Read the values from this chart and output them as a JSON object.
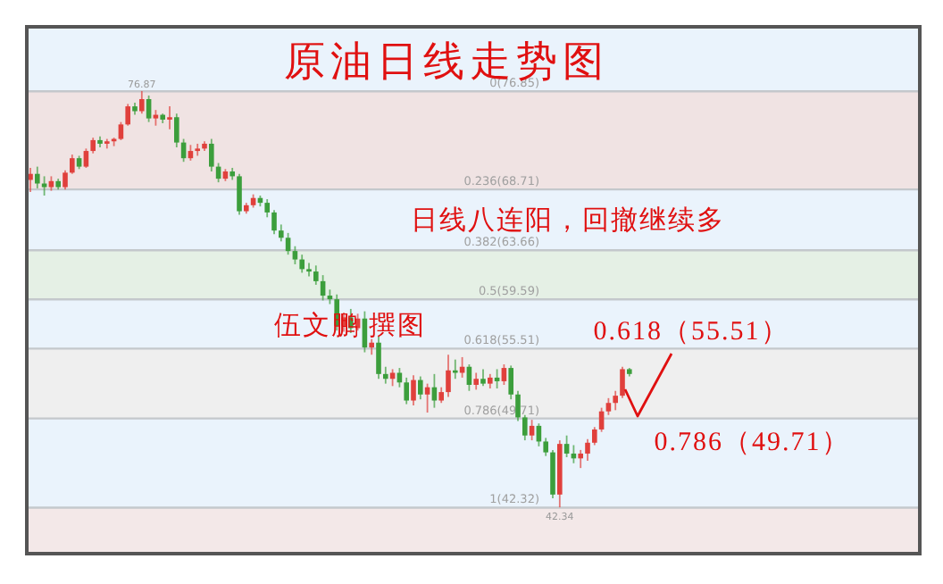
{
  "chart_data": {
    "type": "candlestick",
    "title": "原油日线走势图",
    "ylim": [
      38.5,
      82.2
    ],
    "categories": [
      null,
      null,
      null,
      null,
      null,
      null,
      null,
      null,
      null,
      null,
      null,
      null,
      null,
      null,
      null,
      null,
      null,
      null,
      null,
      null,
      null,
      null,
      null,
      null,
      null,
      null,
      null,
      null,
      null,
      null,
      null,
      null,
      null,
      null,
      null,
      null,
      null,
      null,
      null,
      null,
      null,
      null,
      null,
      null,
      null,
      null,
      null,
      null,
      null,
      null,
      null,
      null,
      null,
      null,
      null,
      null,
      null,
      null,
      null,
      null,
      null,
      null,
      null,
      null,
      null,
      null,
      null,
      null,
      null,
      null,
      null,
      null,
      null,
      null,
      null,
      null,
      null,
      null,
      null,
      null,
      null,
      null,
      null,
      null,
      null,
      null,
      null
    ],
    "ohlc": [
      [
        69.5,
        70.5,
        68.5,
        70.0
      ],
      [
        70.0,
        70.6,
        68.8,
        69.2
      ],
      [
        69.2,
        69.8,
        68.2,
        68.9
      ],
      [
        68.9,
        69.8,
        68.6,
        69.4
      ],
      [
        69.4,
        69.6,
        68.7,
        68.9
      ],
      [
        68.9,
        70.3,
        68.7,
        70.1
      ],
      [
        70.1,
        71.6,
        70.0,
        71.3
      ],
      [
        71.3,
        71.5,
        70.4,
        70.6
      ],
      [
        70.6,
        72.1,
        70.5,
        71.9
      ],
      [
        71.9,
        73.0,
        71.7,
        72.8
      ],
      [
        72.8,
        73.1,
        72.2,
        72.5
      ],
      [
        72.5,
        72.9,
        72.1,
        72.7
      ],
      [
        72.7,
        73.0,
        72.3,
        72.9
      ],
      [
        72.9,
        74.3,
        72.8,
        74.1
      ],
      [
        74.1,
        75.8,
        74.0,
        75.6
      ],
      [
        75.6,
        75.9,
        74.9,
        75.2
      ],
      [
        75.2,
        76.87,
        75.0,
        76.2
      ],
      [
        76.2,
        76.5,
        74.3,
        74.6
      ],
      [
        74.6,
        75.3,
        74.0,
        74.9
      ],
      [
        74.9,
        75.0,
        74.2,
        74.5
      ],
      [
        74.5,
        75.6,
        73.7,
        74.7
      ],
      [
        74.7,
        75.0,
        72.2,
        72.6
      ],
      [
        72.6,
        72.9,
        71.0,
        71.3
      ],
      [
        71.3,
        72.4,
        71.1,
        71.9
      ],
      [
        71.9,
        72.5,
        71.5,
        72.1
      ],
      [
        72.1,
        72.7,
        71.9,
        72.5
      ],
      [
        72.5,
        72.9,
        70.2,
        70.6
      ],
      [
        70.6,
        70.9,
        69.3,
        69.6
      ],
      [
        69.6,
        70.4,
        69.4,
        70.2
      ],
      [
        70.2,
        70.5,
        69.5,
        69.8
      ],
      [
        69.8,
        70.0,
        66.6,
        66.9
      ],
      [
        66.9,
        67.6,
        66.7,
        67.4
      ],
      [
        67.4,
        68.3,
        67.2,
        68.0
      ],
      [
        68.0,
        68.2,
        67.3,
        67.6
      ],
      [
        67.6,
        67.9,
        66.4,
        66.8
      ],
      [
        66.8,
        67.0,
        65.0,
        65.3
      ],
      [
        65.3,
        65.8,
        64.4,
        64.7
      ],
      [
        64.7,
        65.1,
        63.3,
        63.6
      ],
      [
        63.6,
        64.0,
        62.5,
        62.9
      ],
      [
        62.9,
        63.3,
        61.8,
        62.1
      ],
      [
        62.1,
        62.6,
        61.5,
        61.9
      ],
      [
        61.9,
        62.4,
        60.8,
        61.1
      ],
      [
        61.1,
        61.6,
        59.5,
        59.9
      ],
      [
        59.9,
        60.4,
        59.2,
        59.6
      ],
      [
        59.6,
        60.0,
        57.0,
        57.4
      ],
      [
        57.4,
        58.5,
        56.9,
        58.1
      ],
      [
        58.1,
        58.8,
        56.8,
        57.2
      ],
      [
        57.2,
        58.4,
        57.0,
        58.0
      ],
      [
        58.0,
        58.6,
        55.2,
        55.6
      ],
      [
        55.6,
        56.3,
        55.0,
        56.0
      ],
      [
        56.0,
        56.5,
        53.0,
        53.4
      ],
      [
        53.4,
        54.0,
        52.6,
        53.0
      ],
      [
        53.0,
        53.8,
        52.4,
        53.5
      ],
      [
        53.5,
        53.9,
        52.3,
        52.7
      ],
      [
        52.7,
        53.1,
        50.9,
        51.2
      ],
      [
        51.2,
        53.3,
        50.8,
        52.9
      ],
      [
        52.9,
        53.2,
        51.3,
        51.7
      ],
      [
        51.7,
        52.6,
        50.2,
        52.3
      ],
      [
        52.3,
        53.4,
        50.6,
        51.2
      ],
      [
        51.2,
        52.3,
        51.0,
        51.9
      ],
      [
        51.9,
        55.0,
        51.5,
        53.7
      ],
      [
        53.7,
        54.6,
        53.0,
        53.5
      ],
      [
        53.5,
        54.8,
        53.1,
        54.0
      ],
      [
        54.0,
        54.2,
        52.0,
        52.5
      ],
      [
        52.5,
        53.5,
        52.1,
        53.0
      ],
      [
        53.0,
        53.8,
        52.4,
        52.6
      ],
      [
        52.6,
        53.4,
        52.2,
        53.1
      ],
      [
        53.1,
        53.8,
        52.2,
        52.8
      ],
      [
        52.8,
        54.2,
        52.5,
        53.9
      ],
      [
        53.9,
        54.1,
        51.3,
        51.7
      ],
      [
        51.7,
        52.0,
        49.5,
        49.8
      ],
      [
        49.8,
        50.0,
        47.9,
        48.3
      ],
      [
        48.3,
        49.6,
        47.9,
        49.1
      ],
      [
        49.1,
        49.3,
        47.4,
        47.8
      ],
      [
        47.8,
        48.1,
        46.6,
        46.9
      ],
      [
        46.9,
        47.1,
        43.1,
        43.4
      ],
      [
        43.4,
        47.9,
        42.34,
        47.6
      ],
      [
        47.6,
        48.3,
        46.5,
        46.8
      ],
      [
        46.8,
        47.5,
        46.0,
        46.4
      ],
      [
        46.4,
        47.1,
        45.6,
        46.8
      ],
      [
        46.8,
        48.0,
        46.2,
        47.7
      ],
      [
        47.7,
        49.0,
        47.5,
        48.8
      ],
      [
        48.8,
        50.6,
        48.6,
        50.3
      ],
      [
        50.3,
        51.4,
        50.0,
        51.0
      ],
      [
        51.0,
        52.0,
        50.4,
        51.6
      ],
      [
        51.6,
        54.0,
        51.4,
        53.8
      ],
      [
        53.8,
        53.9,
        53.2,
        53.4
      ]
    ],
    "colors": [
      "#e0403c",
      "#3c9e3c",
      "#3c9e3c",
      "#e0403c",
      "#3c9e3c",
      "#e0403c",
      "#e0403c",
      "#3c9e3c",
      "#e0403c",
      "#e0403c",
      "#3c9e3c",
      "#e0403c",
      "#e0403c",
      "#e0403c",
      "#e0403c",
      "#3c9e3c",
      "#e0403c",
      "#3c9e3c",
      "#e0403c",
      "#3c9e3c",
      "#e0403c",
      "#3c9e3c",
      "#3c9e3c",
      "#e0403c",
      "#e0403c",
      "#e0403c",
      "#3c9e3c",
      "#3c9e3c",
      "#e0403c",
      "#3c9e3c",
      "#3c9e3c",
      "#e0403c",
      "#e0403c",
      "#3c9e3c",
      "#3c9e3c",
      "#3c9e3c",
      "#3c9e3c",
      "#3c9e3c",
      "#3c9e3c",
      "#3c9e3c",
      "#3c9e3c",
      "#3c9e3c",
      "#3c9e3c",
      "#3c9e3c",
      "#3c9e3c",
      "#e0403c",
      "#3c9e3c",
      "#e0403c",
      "#3c9e3c",
      "#e0403c",
      "#3c9e3c",
      "#3c9e3c",
      "#e0403c",
      "#3c9e3c",
      "#3c9e3c",
      "#e0403c",
      "#3c9e3c",
      "#e0403c",
      "#3c9e3c",
      "#e0403c",
      "#e0403c",
      "#3c9e3c",
      "#e0403c",
      "#3c9e3c",
      "#e0403c",
      "#3c9e3c",
      "#e0403c",
      "#3c9e3c",
      "#e0403c",
      "#3c9e3c",
      "#3c9e3c",
      "#3c9e3c",
      "#e0403c",
      "#3c9e3c",
      "#3c9e3c",
      "#3c9e3c",
      "#e0403c",
      "#3c9e3c",
      "#3c9e3c",
      "#e0403c",
      "#e0403c",
      "#e0403c",
      "#e0403c",
      "#e0403c",
      "#e0403c",
      "#e0403c",
      "#3c9e3c"
    ],
    "bands": [
      {
        "axis": "y",
        "from": 76.85,
        "to": 82.2,
        "color": "#eaf3fc"
      },
      {
        "axis": "y",
        "from": 68.71,
        "to": 76.85,
        "color": "#f0e3e3"
      },
      {
        "axis": "y",
        "from": 63.66,
        "to": 68.71,
        "color": "#eaf3fc"
      },
      {
        "axis": "y",
        "from": 59.59,
        "to": 63.66,
        "color": "#e5f0e5"
      },
      {
        "axis": "y",
        "from": 55.51,
        "to": 59.59,
        "color": "#eaf3fc"
      },
      {
        "axis": "y",
        "from": 49.71,
        "to": 55.51,
        "color": "#efefef"
      },
      {
        "axis": "y",
        "from": 42.32,
        "to": 49.71,
        "color": "#eaf3fc"
      },
      {
        "axis": "y",
        "from": 38.5,
        "to": 42.32,
        "color": "#f3e8e8"
      }
    ],
    "ref_lines": [
      {
        "axis": "y",
        "value": 76.85,
        "label": "0(76.85)",
        "color": "#c4c8cc"
      },
      {
        "axis": "y",
        "value": 68.71,
        "label": "0.236(68.71)",
        "color": "#c4c8cc"
      },
      {
        "axis": "y",
        "value": 63.66,
        "label": "0.382(63.66)",
        "color": "#c4c8cc"
      },
      {
        "axis": "y",
        "value": 59.59,
        "label": "0.5(59.59)",
        "color": "#c4c8cc"
      },
      {
        "axis": "y",
        "value": 55.51,
        "label": "0.618(55.51)",
        "color": "#c4c8cc"
      },
      {
        "axis": "y",
        "value": 49.71,
        "label": "0.786(49.71)",
        "color": "#c4c8cc"
      },
      {
        "axis": "y",
        "value": 42.32,
        "label": "1(42.32)",
        "color": "#c4c8cc"
      }
    ],
    "annotations": [
      {
        "text": "76.87",
        "y": 76.87
      },
      {
        "text": "42.34",
        "y": 42.34
      },
      "日线八连阳，回撤继续多",
      "伍文鹏 撰图",
      "0.618（55.51）",
      "0.786（49.71）"
    ]
  }
}
